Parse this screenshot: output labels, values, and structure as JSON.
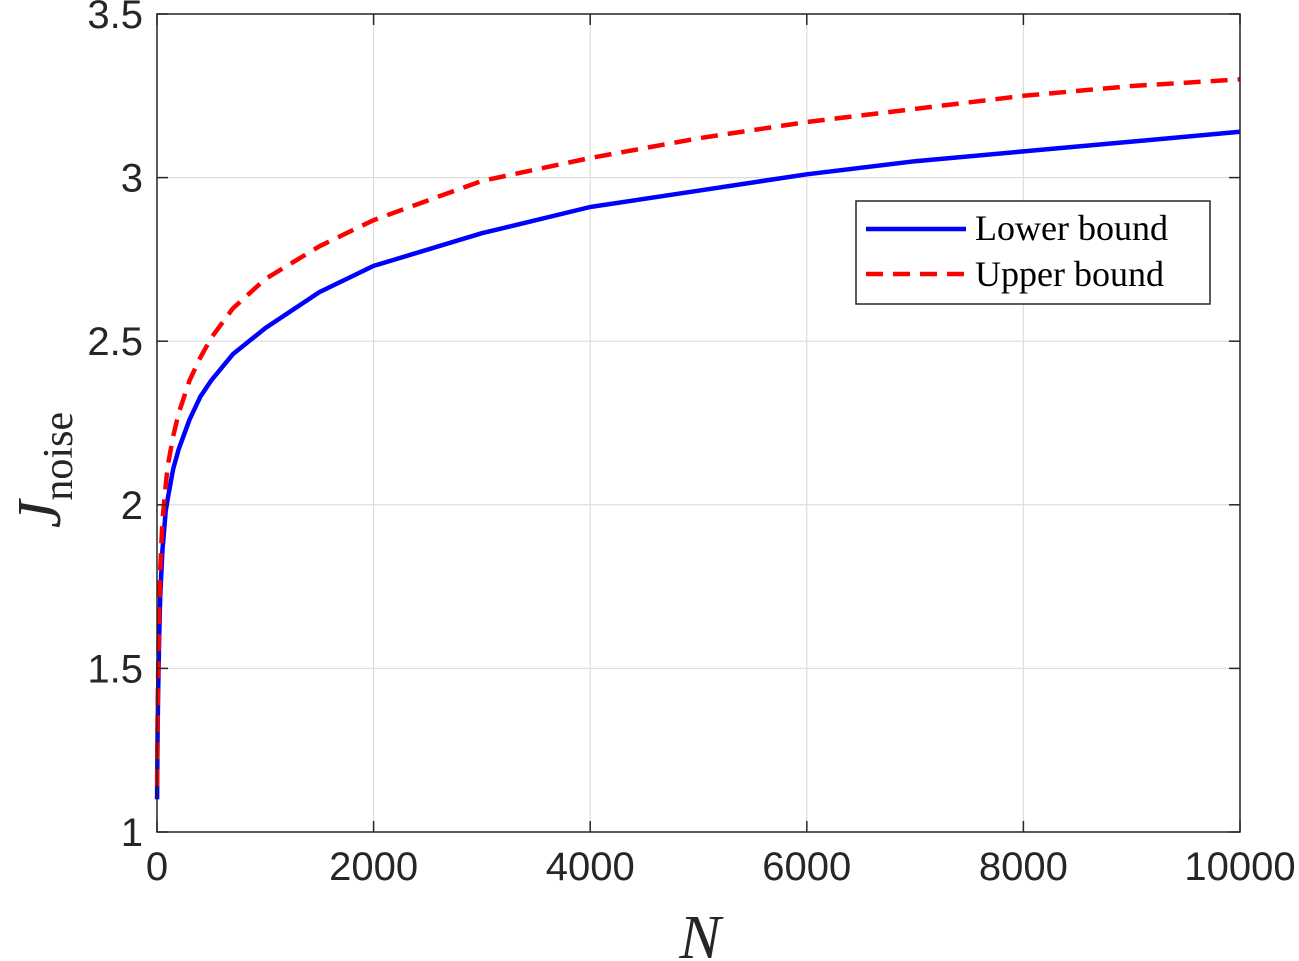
{
  "chart_data": {
    "type": "line",
    "title": "",
    "xlabel": "N",
    "ylabel": {
      "main": "J",
      "sub": "noise"
    },
    "xlim": [
      0,
      10000
    ],
    "ylim": [
      1,
      3.5
    ],
    "xticks": [
      0,
      2000,
      4000,
      6000,
      8000,
      10000
    ],
    "xtick_labels": [
      "0",
      "2000",
      "4000",
      "6000",
      "8000",
      "10000"
    ],
    "yticks": [
      1,
      1.5,
      2,
      2.5,
      3,
      3.5
    ],
    "ytick_labels": [
      "1",
      "1.5",
      "2",
      "2.5",
      "3",
      "3.5"
    ],
    "grid": true,
    "legend_position": "right, upper-middle",
    "series": [
      {
        "name": "Lower bound",
        "color": "#0000ff",
        "style": "solid",
        "x": [
          1,
          5,
          10,
          20,
          30,
          50,
          80,
          100,
          150,
          200,
          300,
          400,
          500,
          700,
          1000,
          1500,
          2000,
          3000,
          4000,
          5000,
          6000,
          7000,
          8000,
          9000,
          10000
        ],
        "y": [
          1.1,
          1.28,
          1.42,
          1.6,
          1.72,
          1.86,
          1.98,
          2.02,
          2.11,
          2.17,
          2.26,
          2.33,
          2.38,
          2.46,
          2.54,
          2.65,
          2.73,
          2.83,
          2.91,
          2.96,
          3.01,
          3.05,
          3.08,
          3.11,
          3.14
        ]
      },
      {
        "name": "Upper bound",
        "color": "#ff0000",
        "style": "dashed",
        "x": [
          1,
          5,
          10,
          20,
          30,
          50,
          80,
          100,
          150,
          200,
          300,
          400,
          500,
          700,
          1000,
          1500,
          2000,
          3000,
          4000,
          5000,
          6000,
          7000,
          8000,
          9000,
          10000
        ],
        "y": [
          1.14,
          1.33,
          1.48,
          1.68,
          1.8,
          1.95,
          2.06,
          2.12,
          2.21,
          2.28,
          2.38,
          2.45,
          2.51,
          2.6,
          2.69,
          2.79,
          2.87,
          2.99,
          3.06,
          3.12,
          3.17,
          3.21,
          3.25,
          3.28,
          3.3
        ]
      }
    ]
  }
}
